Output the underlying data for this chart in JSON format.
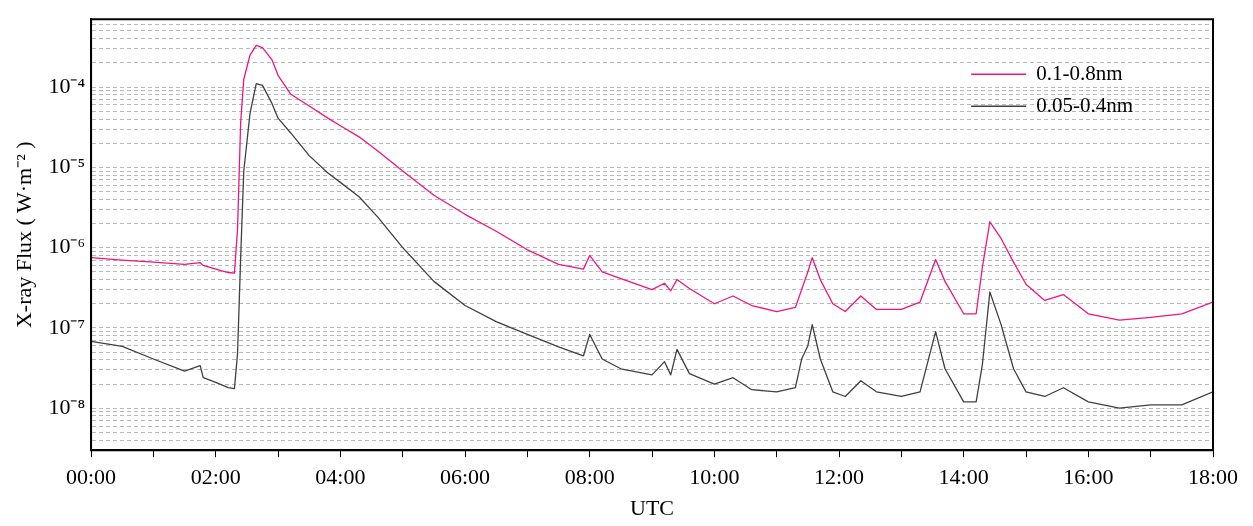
{
  "chart_data": {
    "type": "line",
    "xlabel": "UTC",
    "ylabel": "X-ray Flux ( W·m⁻² )",
    "log": "y",
    "grid": "y",
    "legend": "top right",
    "marker": "none",
    "line_style": "solid",
    "xlim": [
      0,
      18
    ],
    "xticks": [
      {
        "value": 0,
        "label": "00:00"
      },
      {
        "value": 1,
        "label": null
      },
      {
        "value": 2,
        "label": "02:00"
      },
      {
        "value": 3,
        "label": null
      },
      {
        "value": 4,
        "label": "04:00"
      },
      {
        "value": 5,
        "label": null
      },
      {
        "value": 6,
        "label": "06:00"
      },
      {
        "value": 7,
        "label": null
      },
      {
        "value": 8,
        "label": "08:00"
      },
      {
        "value": 9,
        "label": null
      },
      {
        "value": 10,
        "label": "10:00"
      },
      {
        "value": 11,
        "label": null
      },
      {
        "value": 12,
        "label": "12:00"
      },
      {
        "value": 13,
        "label": null
      },
      {
        "value": 14,
        "label": "14:00"
      },
      {
        "value": 15,
        "label": null
      },
      {
        "value": 16,
        "label": "16:00"
      },
      {
        "value": 17,
        "label": null
      },
      {
        "value": 18,
        "label": "18:00"
      }
    ],
    "ylim": [
      3e-09,
      0.0007
    ],
    "yticks": [
      {
        "value": 4e-09,
        "label": null
      },
      {
        "value": 5e-09,
        "label": null
      },
      {
        "value": 6e-09,
        "label": null
      },
      {
        "value": 7e-09,
        "label": null
      },
      {
        "value": 8e-09,
        "label": null
      },
      {
        "value": 9e-09,
        "label": null
      },
      {
        "value": 1e-08,
        "label": "10⁻⁸"
      },
      {
        "value": 2e-08,
        "label": null
      },
      {
        "value": 3e-08,
        "label": null
      },
      {
        "value": 4e-08,
        "label": null
      },
      {
        "value": 5e-08,
        "label": null
      },
      {
        "value": 6e-08,
        "label": null
      },
      {
        "value": 7e-08,
        "label": null
      },
      {
        "value": 8e-08,
        "label": null
      },
      {
        "value": 9e-08,
        "label": null
      },
      {
        "value": 1e-07,
        "label": "10⁻⁷"
      },
      {
        "value": 2e-07,
        "label": null
      },
      {
        "value": 3e-07,
        "label": null
      },
      {
        "value": 4e-07,
        "label": null
      },
      {
        "value": 5e-07,
        "label": null
      },
      {
        "value": 6e-07,
        "label": null
      },
      {
        "value": 7e-07,
        "label": null
      },
      {
        "value": 8e-07,
        "label": null
      },
      {
        "value": 9e-07,
        "label": null
      },
      {
        "value": 1e-06,
        "label": "10⁻⁶"
      },
      {
        "value": 2e-06,
        "label": null
      },
      {
        "value": 3e-06,
        "label": null
      },
      {
        "value": 4e-06,
        "label": null
      },
      {
        "value": 5e-06,
        "label": null
      },
      {
        "value": 6e-06,
        "label": null
      },
      {
        "value": 7e-06,
        "label": null
      },
      {
        "value": 8e-06,
        "label": null
      },
      {
        "value": 9e-06,
        "label": null
      },
      {
        "value": 1e-05,
        "label": "10⁻⁵"
      },
      {
        "value": 2e-05,
        "label": null
      },
      {
        "value": 3e-05,
        "label": null
      },
      {
        "value": 4e-05,
        "label": null
      },
      {
        "value": 5e-05,
        "label": null
      },
      {
        "value": 6e-05,
        "label": null
      },
      {
        "value": 7e-05,
        "label": null
      },
      {
        "value": 8e-05,
        "label": null
      },
      {
        "value": 9e-05,
        "label": null
      },
      {
        "value": 0.0001,
        "label": "10⁻⁴"
      },
      {
        "value": 0.0002,
        "label": null
      },
      {
        "value": 0.0003,
        "label": null
      },
      {
        "value": 0.0004,
        "label": null
      },
      {
        "value": 0.0005,
        "label": null
      },
      {
        "value": 0.0006,
        "label": null
      },
      {
        "value": 0.0007,
        "label": null
      }
    ],
    "x": [
      0,
      0.5,
      1,
      1.5,
      1.75,
      1.8,
      2,
      2.2,
      2.3,
      2.35,
      2.4,
      2.45,
      2.55,
      2.65,
      2.75,
      2.9,
      3,
      3.2,
      3.5,
      3.8,
      4,
      4.3,
      4.6,
      5,
      5.5,
      6,
      6.5,
      7,
      7.5,
      7.9,
      8,
      8.2,
      8.5,
      9,
      9.2,
      9.3,
      9.4,
      9.6,
      10,
      10.3,
      10.6,
      11,
      11.3,
      11.4,
      11.5,
      11.57,
      11.7,
      11.9,
      12.1,
      12.35,
      12.6,
      13,
      13.3,
      13.55,
      13.7,
      14,
      14.2,
      14.3,
      14.42,
      14.6,
      14.8,
      15,
      15.3,
      15.6,
      16,
      16.5,
      17,
      17.5,
      18
    ],
    "series": [
      {
        "name": "0.1-0.8nm",
        "color": "#f0147c",
        "values": [
          7.5e-07,
          7e-07,
          6.6e-07,
          6.2e-07,
          6.5e-07,
          6e-07,
          5.4e-07,
          4.9e-07,
          4.8e-07,
          1.7e-06,
          3.6e-05,
          0.000125,
          0.00025,
          0.00033,
          0.00031,
          0.00022,
          0.00014,
          8.2e-05,
          5.8e-05,
          4.1e-05,
          3.3e-05,
          2.4e-05,
          1.6e-05,
          9e-06,
          4.5e-06,
          2.6e-06,
          1.6e-06,
          9.4e-07,
          6.2e-07,
          5.4e-07,
          8e-07,
          5e-07,
          4.1e-07,
          3e-07,
          3.6e-07,
          2.9e-07,
          4e-07,
          3.1e-07,
          2e-07,
          2.5e-07,
          1.9e-07,
          1.6e-07,
          1.8e-07,
          3e-07,
          5e-07,
          7.5e-07,
          4e-07,
          2e-07,
          1.6e-07,
          2.5e-07,
          1.7e-07,
          1.7e-07,
          2.1e-07,
          7.1e-07,
          3.8e-07,
          1.5e-07,
          1.5e-07,
          5.7e-07,
          2.1e-06,
          1.3e-06,
          6.6e-07,
          3.5e-07,
          2.2e-07,
          2.6e-07,
          1.5e-07,
          1.25e-07,
          1.35e-07,
          1.5e-07,
          2.1e-07
        ]
      },
      {
        "name": "0.05-0.4nm",
        "color": "#404040",
        "values": [
          6.8e-08,
          5.9e-08,
          4.1e-08,
          2.9e-08,
          3.4e-08,
          2.4e-08,
          2.1e-08,
          1.8e-08,
          1.75e-08,
          4.8e-08,
          7.5e-07,
          9e-06,
          4.7e-05,
          0.00011,
          0.000105,
          6.3e-05,
          4.1e-05,
          2.7e-05,
          1.4e-05,
          8.5e-06,
          6.5e-06,
          4.3e-06,
          2.4e-06,
          1e-06,
          3.8e-07,
          1.9e-07,
          1.2e-07,
          8.3e-08,
          5.8e-08,
          4.5e-08,
          8.3e-08,
          4.1e-08,
          3.1e-08,
          2.6e-08,
          3.8e-08,
          2.6e-08,
          5.4e-08,
          2.7e-08,
          2e-08,
          2.4e-08,
          1.7e-08,
          1.6e-08,
          1.8e-08,
          4.1e-08,
          6e-08,
          1.1e-07,
          4.1e-08,
          1.6e-08,
          1.4e-08,
          2.2e-08,
          1.6e-08,
          1.4e-08,
          1.6e-08,
          9e-08,
          3.1e-08,
          1.2e-08,
          1.2e-08,
          3.5e-08,
          2.8e-07,
          1.1e-07,
          3.1e-08,
          1.6e-08,
          1.4e-08,
          1.8e-08,
          1.2e-08,
          1e-08,
          1.1e-08,
          1.1e-08,
          1.6e-08
        ]
      }
    ]
  }
}
